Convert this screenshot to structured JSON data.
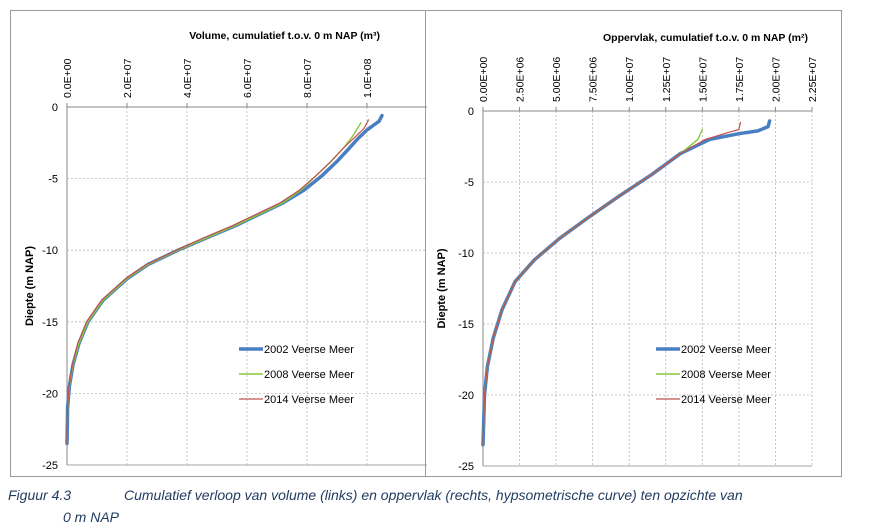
{
  "figure": {
    "number": "Figuur 4.3",
    "caption_line1": "Cumulatief verloop van volume (links) en oppervlak (rechts, hypsometrische curve) ten opzichte van",
    "caption_line2": "0 m NAP"
  },
  "chart_data": [
    {
      "type": "line",
      "title": "Volume, cumulatief t.o.v. 0 m NAP (m³)",
      "xlabel": "",
      "ylabel": "Diepte (m NAP)",
      "xlim": [
        0,
        120000000
      ],
      "ylim": [
        -25,
        0
      ],
      "x_ticks": [
        0,
        20000000,
        40000000,
        60000000,
        80000000,
        100000000
      ],
      "x_tick_labels": [
        "0.0E+00",
        "2.0E+07",
        "4.0E+07",
        "6.0E+07",
        "8.0E+07",
        "1.0E+08"
      ],
      "y_ticks": [
        0,
        -5,
        -10,
        -15,
        -20,
        -25
      ],
      "y_tick_labels": [
        "0",
        "-5",
        "-10",
        "-15",
        "-20",
        "-25"
      ],
      "x_axis_position": "top",
      "grid": true,
      "legend_position": "bottom-right",
      "series": [
        {
          "name": "2002 Veerse Meer",
          "color": "#4a7ec2",
          "x": [
            0,
            200000,
            800000,
            2000000,
            4000000,
            7000000,
            12000000,
            20000000,
            27000000,
            37000000,
            47000000,
            56000000,
            64000000,
            72000000,
            79000000,
            85000000,
            90000000,
            94000000,
            97000000,
            100000000,
            104000000,
            105000000
          ],
          "y": [
            -23.5,
            -21,
            -19.5,
            -18,
            -16.5,
            -15,
            -13.5,
            -12,
            -11,
            -10,
            -9.1,
            -8.3,
            -7.5,
            -6.7,
            -5.8,
            -4.8,
            -3.8,
            -2.9,
            -2.2,
            -1.6,
            -1.0,
            -0.6
          ]
        },
        {
          "name": "2008 Veerse Meer",
          "color": "#8cc63f",
          "x": [
            0,
            200000,
            800000,
            2000000,
            4000000,
            7000000,
            12000000,
            20000000,
            27000000,
            37000000,
            47000000,
            56000000,
            64000000,
            72000000,
            78000000,
            83000000,
            88000000,
            92000000,
            95000000,
            98000000
          ],
          "y": [
            -23.5,
            -21,
            -19.5,
            -18,
            -16.5,
            -15,
            -13.5,
            -12,
            -11,
            -10,
            -9.1,
            -8.3,
            -7.5,
            -6.7,
            -5.8,
            -4.8,
            -3.8,
            -2.9,
            -2.1,
            -1.1
          ]
        },
        {
          "name": "2014 Veerse Meer",
          "color": "#c0504d",
          "x": [
            0,
            150000,
            700000,
            1800000,
            3600000,
            6500000,
            11500000,
            19500000,
            26500000,
            36500000,
            46000000,
            55000000,
            63000000,
            71000000,
            77500000,
            83000000,
            88000000,
            92000000,
            96000000,
            99000000,
            100500000
          ],
          "y": [
            -23.5,
            -21,
            -19.5,
            -18,
            -16.5,
            -15,
            -13.5,
            -12,
            -11,
            -10,
            -9.1,
            -8.3,
            -7.5,
            -6.7,
            -5.8,
            -4.8,
            -3.8,
            -2.9,
            -2.1,
            -1.5,
            -0.9
          ]
        }
      ]
    },
    {
      "type": "line",
      "title": "Oppervlak, cumulatief t.o.v. 0 m NAP (m²)",
      "xlabel": "",
      "ylabel": "Diepte (m NAP)",
      "xlim": [
        0,
        22500000
      ],
      "ylim": [
        -25,
        0
      ],
      "x_ticks": [
        0,
        2500000,
        5000000,
        7500000,
        10000000,
        12500000,
        15000000,
        17500000,
        20000000,
        22500000
      ],
      "x_tick_labels": [
        "0.00E+00",
        "2.50E+06",
        "5.00E+06",
        "7.50E+06",
        "1.00E+07",
        "1.25E+07",
        "1.50E+07",
        "1.75E+07",
        "2.00E+07",
        "2.25E+07"
      ],
      "y_ticks": [
        0,
        -5,
        -10,
        -15,
        -20,
        -25
      ],
      "y_tick_labels": [
        "0",
        "-5",
        "-10",
        "-15",
        "-20",
        "-25"
      ],
      "x_axis_position": "top",
      "grid": true,
      "legend_position": "bottom-right",
      "series": [
        {
          "name": "2002 Veerse Meer",
          "color": "#4a7ec2",
          "x": [
            0,
            100000,
            300000,
            700000,
            1300000,
            2200000,
            3500000,
            5200000,
            7200000,
            9300000,
            11500000,
            13500000,
            15500000,
            17500000,
            18800000,
            19500000,
            19600000
          ],
          "y": [
            -23.5,
            -20,
            -18,
            -16,
            -14,
            -12,
            -10.5,
            -9,
            -7.5,
            -6,
            -4.5,
            -3,
            -2,
            -1.6,
            -1.4,
            -1.1,
            -0.7
          ]
        },
        {
          "name": "2008 Veerse Meer",
          "color": "#8cc63f",
          "x": [
            0,
            100000,
            300000,
            700000,
            1300000,
            2200000,
            3500000,
            5200000,
            7200000,
            9300000,
            11500000,
            13500000,
            14700000,
            15000000
          ],
          "y": [
            -23.5,
            -20,
            -18,
            -16,
            -14,
            -12,
            -10.5,
            -9,
            -7.5,
            -6,
            -4.5,
            -3,
            -2,
            -1.3
          ]
        },
        {
          "name": "2014 Veerse Meer",
          "color": "#c0504d",
          "x": [
            0,
            100000,
            300000,
            700000,
            1300000,
            2200000,
            3500000,
            5200000,
            7200000,
            9300000,
            11500000,
            13500000,
            15200000,
            16800000,
            17500000,
            17600000
          ],
          "y": [
            -23.5,
            -20,
            -18,
            -16,
            -14,
            -12,
            -10.5,
            -9,
            -7.5,
            -6,
            -4.5,
            -3,
            -2,
            -1.5,
            -1.3,
            -0.8
          ]
        }
      ]
    }
  ]
}
